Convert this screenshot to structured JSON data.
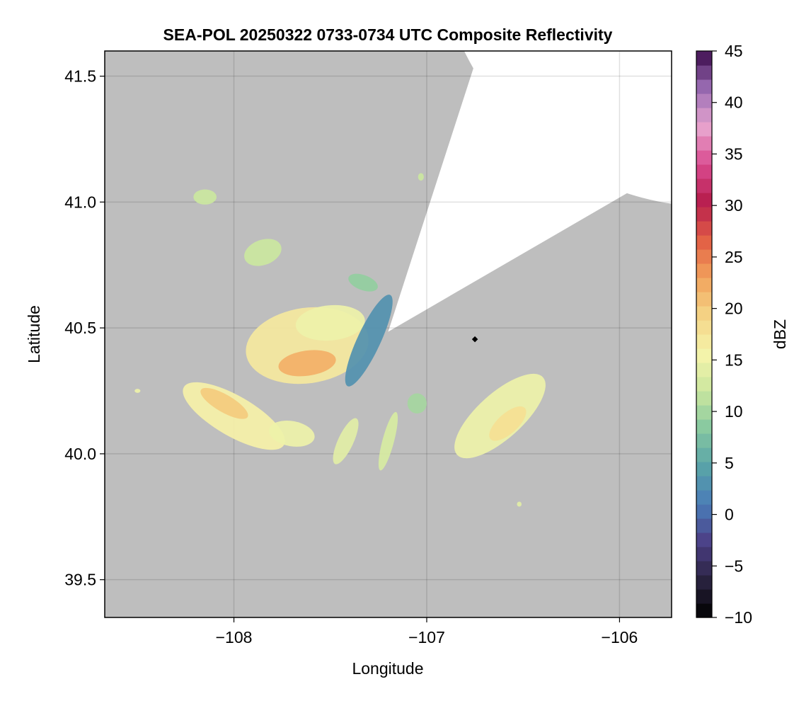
{
  "chart_data": {
    "type": "heatmap",
    "title": "SEA-POL 20250322 0733-0734 UTC Composite Reflectivity",
    "xlabel": "Longitude",
    "ylabel": "Latitude",
    "xlim": [
      -108.67,
      -105.73
    ],
    "ylim": [
      39.35,
      41.6
    ],
    "x_ticks": [
      -108,
      -107,
      -106
    ],
    "x_tick_labels": [
      "−108",
      "−107",
      "−106"
    ],
    "y_ticks": [
      39.5,
      40.0,
      40.5,
      41.0,
      41.5
    ],
    "y_tick_labels": [
      "39.5",
      "40.0",
      "40.5",
      "41.0",
      "41.5"
    ],
    "grid": true,
    "background_color": "#bebebe",
    "coverage_color": "#ffffff",
    "radar": {
      "center_lon": -107.2,
      "center_lat": 40.485,
      "range_lon": 1.43,
      "range_lat": 1.1,
      "blocked_sector_deg": [
        30,
        72
      ]
    },
    "site_marker": {
      "lon": -106.75,
      "lat": 40.455,
      "color": "#000000"
    },
    "colorbar": {
      "label": "dBZ",
      "vmin": -10,
      "vmax": 45,
      "step": 1.375,
      "ticks": [
        -10,
        -5,
        0,
        5,
        10,
        15,
        20,
        25,
        30,
        35,
        40,
        45
      ],
      "tick_labels": [
        "−10",
        "−5",
        "0",
        "5",
        "10",
        "15",
        "20",
        "25",
        "30",
        "35",
        "40",
        "45"
      ],
      "colormap": "Spectral_r",
      "colormap_stops": [
        "#000000",
        "#2a2340",
        "#4c3f86",
        "#4a7cb8",
        "#59a3a8",
        "#86c8a0",
        "#cbe79f",
        "#f6f4ab",
        "#f4d486",
        "#f2a35c",
        "#e25f45",
        "#b71d4d",
        "#d94a8f",
        "#e8a6cf",
        "#9b6db5",
        "#3b0b4b"
      ]
    },
    "echoes": [
      {
        "name": "main-cluster",
        "lon": -107.62,
        "lat": 40.43,
        "rx": 0.32,
        "ry": 0.15,
        "rot": -8,
        "dbz": 17
      },
      {
        "name": "main-cluster-upper",
        "lon": -107.5,
        "lat": 40.52,
        "rx": 0.18,
        "ry": 0.07,
        "rot": -5,
        "dbz": 15
      },
      {
        "name": "main-core",
        "lon": -107.62,
        "lat": 40.36,
        "rx": 0.15,
        "ry": 0.05,
        "rot": -8,
        "dbz": 22
      },
      {
        "name": "west-band",
        "lon": -108.0,
        "lat": 40.15,
        "rx": 0.3,
        "ry": 0.08,
        "rot": 30,
        "dbz": 16
      },
      {
        "name": "west-band-core",
        "lon": -108.05,
        "lat": 40.2,
        "rx": 0.14,
        "ry": 0.035,
        "rot": 30,
        "dbz": 20
      },
      {
        "name": "southwest-cell",
        "lon": -107.7,
        "lat": 40.08,
        "rx": 0.12,
        "ry": 0.05,
        "rot": 10,
        "dbz": 15
      },
      {
        "name": "east-band",
        "lon": -106.62,
        "lat": 40.15,
        "rx": 0.3,
        "ry": 0.09,
        "rot": -42,
        "dbz": 15
      },
      {
        "name": "east-band-core",
        "lon": -106.58,
        "lat": 40.12,
        "rx": 0.12,
        "ry": 0.04,
        "rot": -42,
        "dbz": 18
      },
      {
        "name": "north-cell",
        "lon": -107.85,
        "lat": 40.8,
        "rx": 0.1,
        "ry": 0.05,
        "rot": -20,
        "dbz": 12
      },
      {
        "name": "north-small-cell",
        "lon": -108.15,
        "lat": 41.02,
        "rx": 0.06,
        "ry": 0.03,
        "rot": 0,
        "dbz": 12
      },
      {
        "name": "edge-band",
        "lon": -107.3,
        "lat": 40.45,
        "rx": 0.06,
        "ry": 0.2,
        "rot": 25,
        "dbz": 3
      },
      {
        "name": "southern-streak-1",
        "lon": -107.42,
        "lat": 40.05,
        "rx": 0.04,
        "ry": 0.1,
        "rot": 25,
        "dbz": 14
      },
      {
        "name": "southern-streak-2",
        "lon": -107.2,
        "lat": 40.05,
        "rx": 0.03,
        "ry": 0.12,
        "rot": 15,
        "dbz": 13
      },
      {
        "name": "southern-streak-3",
        "lon": -107.05,
        "lat": 40.2,
        "rx": 0.05,
        "ry": 0.04,
        "rot": 0,
        "dbz": 10
      },
      {
        "name": "north-east-cell",
        "lon": -107.33,
        "lat": 40.68,
        "rx": 0.08,
        "ry": 0.03,
        "rot": 20,
        "dbz": 9
      },
      {
        "name": "small-north-pixel",
        "lon": -107.03,
        "lat": 41.1,
        "rx": 0.015,
        "ry": 0.015,
        "rot": 0,
        "dbz": 12
      },
      {
        "name": "small-south-pixel",
        "lon": -106.52,
        "lat": 39.8,
        "rx": 0.012,
        "ry": 0.01,
        "rot": 0,
        "dbz": 14
      },
      {
        "name": "small-west-pixel",
        "lon": -108.5,
        "lat": 40.25,
        "rx": 0.015,
        "ry": 0.008,
        "rot": 0,
        "dbz": 15
      }
    ]
  }
}
